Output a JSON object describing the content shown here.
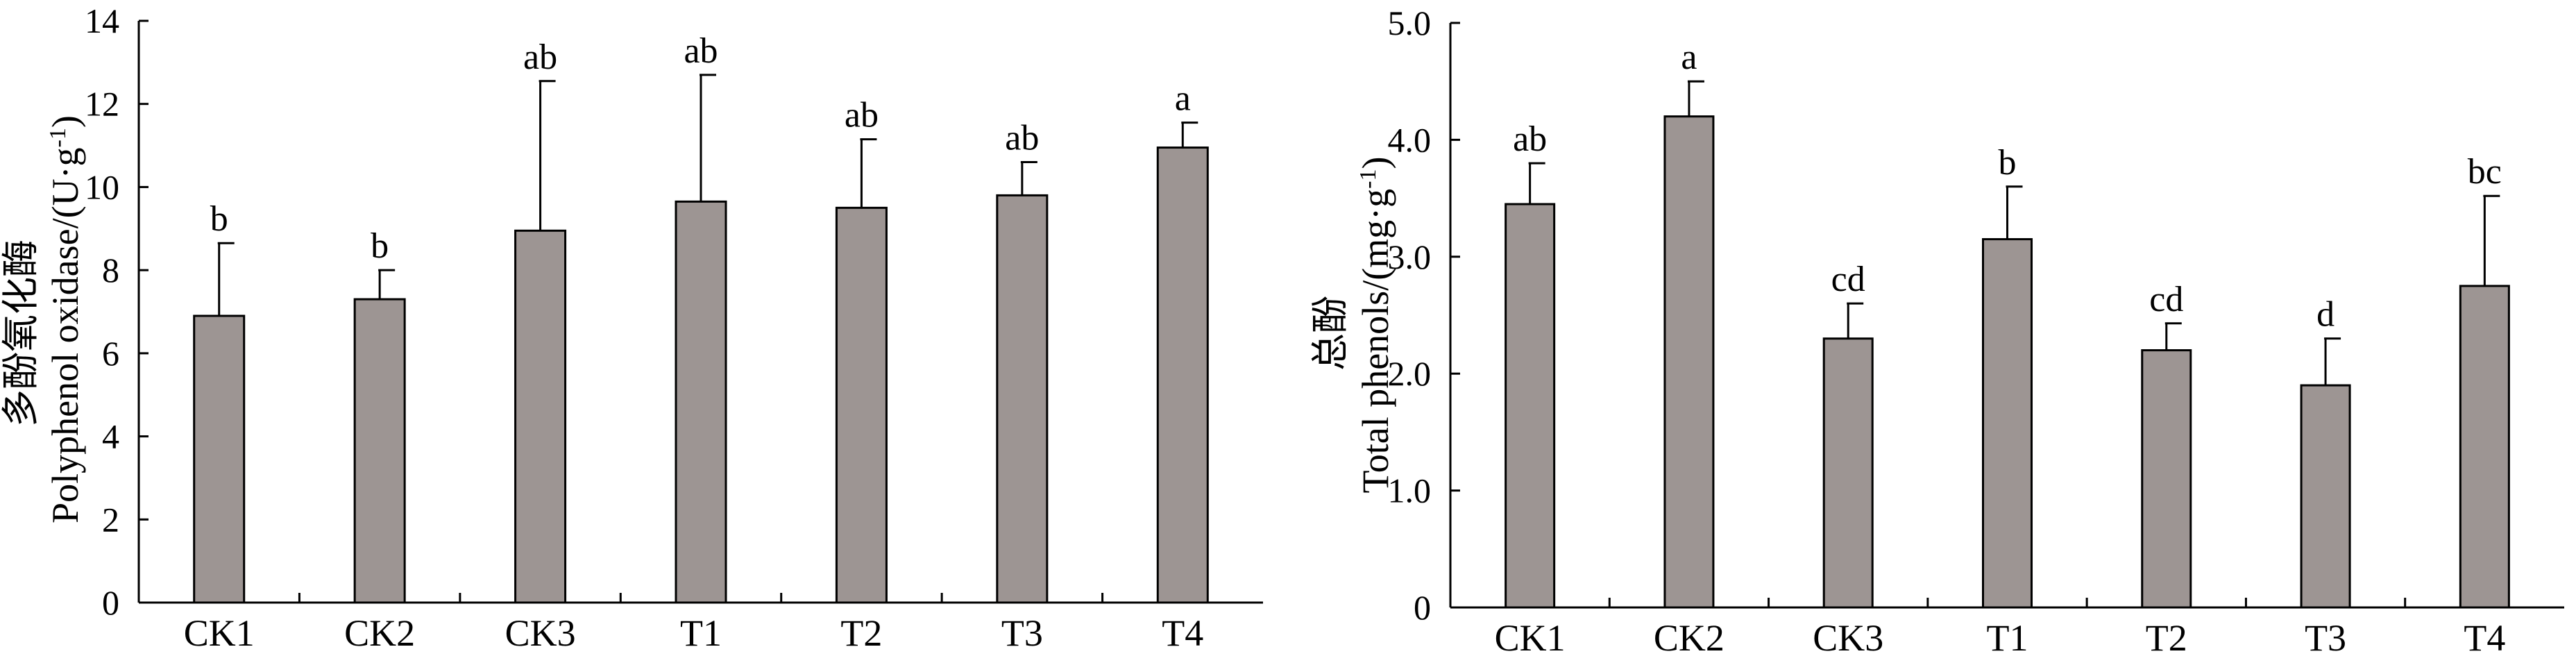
{
  "chart_data": [
    {
      "type": "bar",
      "ylabel_cn": "多酚氧化酶",
      "ylabel_en": "Polyphenol oxidase/(U·g",
      "ylabel_sup": "-1",
      "ylabel_close": ")",
      "categories": [
        "CK1",
        "CK2",
        "CK3",
        "T1",
        "T2",
        "T3",
        "T4"
      ],
      "values": [
        6.9,
        7.3,
        8.95,
        9.65,
        9.5,
        9.8,
        10.95
      ],
      "errors": [
        1.75,
        0.7,
        3.6,
        3.05,
        1.65,
        0.8,
        0.6
      ],
      "significance": [
        "b",
        "b",
        "ab",
        "ab",
        "ab",
        "ab",
        "a"
      ],
      "ylim": [
        0,
        14
      ],
      "yticks": [
        0,
        2,
        4,
        6,
        8,
        10,
        12,
        14
      ],
      "ytick_labels": [
        "0",
        "2",
        "4",
        "6",
        "8",
        "10",
        "12",
        "14"
      ],
      "bar_color": "#9d9593"
    },
    {
      "type": "bar",
      "ylabel_cn": "总酚",
      "ylabel_en": "Total phenols/(mg·g",
      "ylabel_sup": "-1",
      "ylabel_close": ")",
      "categories": [
        "CK1",
        "CK2",
        "CK3",
        "T1",
        "T2",
        "T3",
        "T4"
      ],
      "values": [
        3.45,
        4.2,
        2.3,
        3.15,
        2.2,
        1.9,
        2.75
      ],
      "errors": [
        0.35,
        0.3,
        0.3,
        0.45,
        0.23,
        0.4,
        0.77
      ],
      "significance": [
        "ab",
        "a",
        "cd",
        "b",
        "cd",
        "d",
        "bc"
      ],
      "ylim": [
        0,
        5
      ],
      "yticks": [
        0,
        1,
        2,
        3,
        4,
        5
      ],
      "ytick_labels": [
        "0",
        "1.0",
        "2.0",
        "3.0",
        "4.0",
        "5.0"
      ],
      "bar_color": "#9d9593"
    }
  ]
}
